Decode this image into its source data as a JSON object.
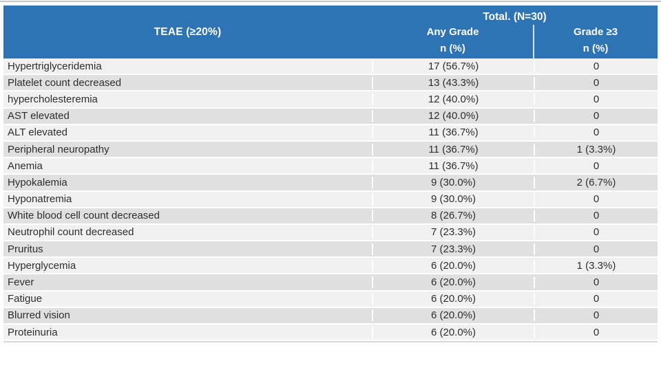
{
  "colors": {
    "header_bg": "#2E74B5",
    "header_text": "#FFFFFF",
    "row_light": "#F1F1F1",
    "row_dark": "#E0E0E0",
    "row_divider": "#FFFFFF",
    "body_text": "#2D2D2D",
    "top_rule": "#C4C4C4",
    "bottom_rule": "#D8D8D8"
  },
  "table": {
    "group_header": "Total. (N=30)",
    "col1_header": "TEAE (≥20%)",
    "col2_header": "Any Grade",
    "col2_subheader": "n (%)",
    "col3_header": "Grade ≥3",
    "col3_subheader": "n (%)",
    "rows": [
      {
        "teae": "Hypertriglyceridemia",
        "any_grade": "17 (56.7%)",
        "grade_ge3": "0"
      },
      {
        "teae": "Platelet count decreased",
        "any_grade": "13 (43.3%)",
        "grade_ge3": "0"
      },
      {
        "teae": "hypercholesteremia",
        "any_grade": "12 (40.0%)",
        "grade_ge3": "0"
      },
      {
        "teae": "AST elevated",
        "any_grade": "12 (40.0%)",
        "grade_ge3": "0"
      },
      {
        "teae": "ALT elevated",
        "any_grade": "11 (36.7%)",
        "grade_ge3": "0"
      },
      {
        "teae": "Peripheral neuropathy",
        "any_grade": "11 (36.7%)",
        "grade_ge3": "1 (3.3%)"
      },
      {
        "teae": "Anemia",
        "any_grade": "11 (36.7%)",
        "grade_ge3": "0"
      },
      {
        "teae": "Hypokalemia",
        "any_grade": "9 (30.0%)",
        "grade_ge3": "2 (6.7%)"
      },
      {
        "teae": "Hyponatremia",
        "any_grade": "9 (30.0%)",
        "grade_ge3": "0"
      },
      {
        "teae": "White blood cell count decreased",
        "any_grade": "8 (26.7%)",
        "grade_ge3": "0"
      },
      {
        "teae": "Neutrophil count decreased",
        "any_grade": "7 (23.3%)",
        "grade_ge3": "0"
      },
      {
        "teae": "Pruritus",
        "any_grade": "7 (23.3%)",
        "grade_ge3": "0"
      },
      {
        "teae": "Hyperglycemia",
        "any_grade": "6 (20.0%)",
        "grade_ge3": "1 (3.3%)"
      },
      {
        "teae": "Fever",
        "any_grade": "6 (20.0%)",
        "grade_ge3": "0"
      },
      {
        "teae": "Fatigue",
        "any_grade": "6 (20.0%)",
        "grade_ge3": "0"
      },
      {
        "teae": "Blurred vision",
        "any_grade": "6 (20.0%)",
        "grade_ge3": "0"
      },
      {
        "teae": "Proteinuria",
        "any_grade": "6 (20.0%)",
        "grade_ge3": "0"
      }
    ]
  }
}
